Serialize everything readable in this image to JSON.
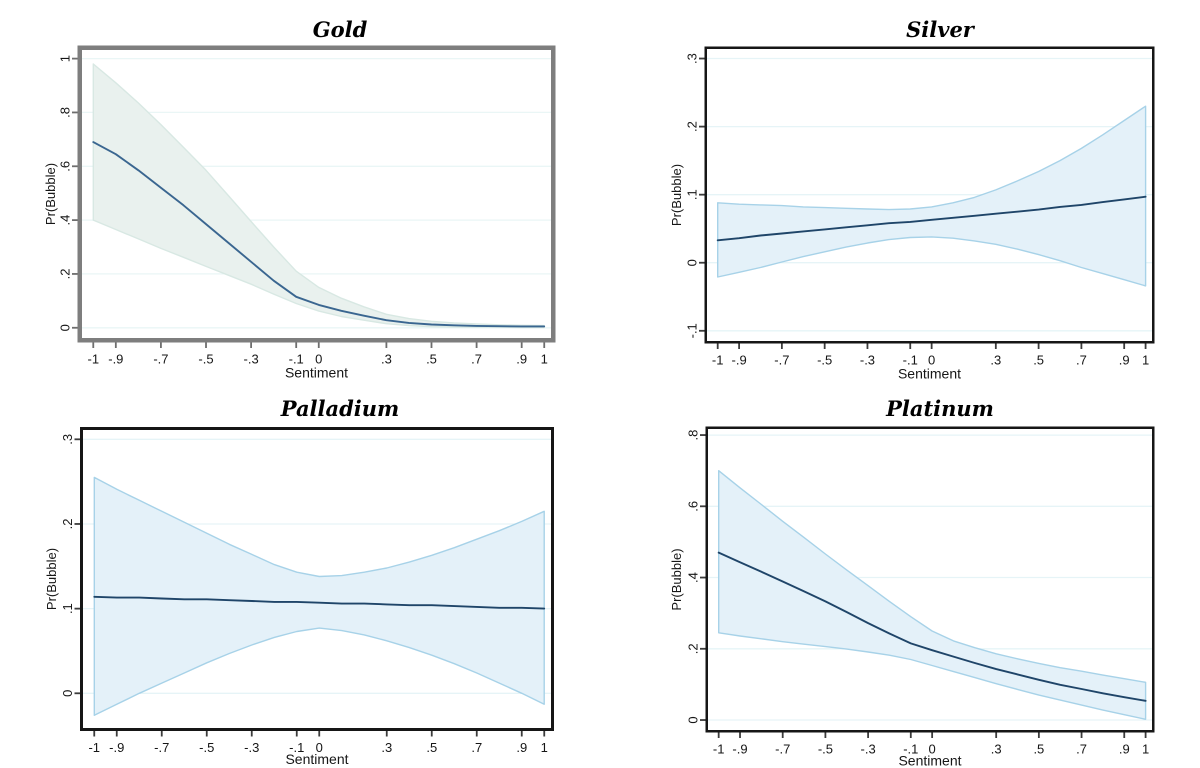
{
  "figure": {
    "background": "#ffffff",
    "layout_hint": "2x2 grid of Stata-style predictive margins plots with 95% confidence bands, horizontal gridlines on, no legend"
  },
  "chart_data": [
    {
      "type": "line",
      "title": "Gold",
      "xlabel": "Sentiment",
      "ylabel": "Pr(Bubble)",
      "x": [
        -1,
        -0.9,
        -0.8,
        -0.7,
        -0.6,
        -0.5,
        -0.4,
        -0.3,
        -0.2,
        -0.1,
        0,
        0.1,
        0.2,
        0.3,
        0.4,
        0.5,
        0.6,
        0.7,
        0.8,
        0.9,
        1
      ],
      "line": [
        0.69,
        0.645,
        0.585,
        0.52,
        0.455,
        0.385,
        0.315,
        0.245,
        0.175,
        0.115,
        0.085,
        0.063,
        0.045,
        0.028,
        0.018,
        0.012,
        0.009,
        0.007,
        0.006,
        0.005,
        0.005
      ],
      "ci_upper": [
        0.98,
        0.91,
        0.835,
        0.755,
        0.67,
        0.585,
        0.49,
        0.395,
        0.3,
        0.21,
        0.15,
        0.11,
        0.078,
        0.05,
        0.034,
        0.024,
        0.018,
        0.014,
        0.011,
        0.009,
        0.008
      ],
      "ci_lower": [
        0.4,
        0.365,
        0.33,
        0.295,
        0.262,
        0.228,
        0.195,
        0.162,
        0.125,
        0.09,
        0.062,
        0.042,
        0.028,
        0.015,
        0.008,
        0.004,
        0.003,
        0.002,
        0.002,
        0.001,
        0.001
      ],
      "xlim": [
        -1.05,
        1.03
      ],
      "ylim": [
        -0.038,
        1.032
      ],
      "xticks": {
        "values": [
          -1,
          -0.9,
          -0.7,
          -0.5,
          -0.3,
          -0.1,
          0,
          0.3,
          0.5,
          0.7,
          0.9,
          1
        ],
        "labels": [
          "-1",
          "-.9",
          "-.7",
          "-.5",
          "-.3",
          "-.1",
          "0",
          ".3",
          ".5",
          ".7",
          ".9",
          "1"
        ]
      },
      "yticks": {
        "values": [
          0,
          0.2,
          0.4,
          0.6,
          0.8,
          1
        ],
        "labels": [
          "0",
          ".2",
          ".4",
          ".6",
          ".8",
          "1"
        ]
      },
      "grid": "horizontal",
      "colors": {
        "band": "#e9f1ee",
        "band_edge": "#d8e8e3",
        "line": "#3a6690",
        "frame": "#7e7e7e",
        "grid": "#eaf6f6",
        "tick": "#6e6e6e"
      },
      "frame_width": 4.5
    },
    {
      "type": "line",
      "title": "Silver",
      "xlabel": "Sentiment",
      "ylabel": "Pr(Bubble)",
      "x": [
        -1,
        -0.9,
        -0.8,
        -0.7,
        -0.6,
        -0.5,
        -0.4,
        -0.3,
        -0.2,
        -0.1,
        0,
        0.1,
        0.2,
        0.3,
        0.4,
        0.5,
        0.6,
        0.7,
        0.8,
        0.9,
        1
      ],
      "line": [
        0.033,
        0.036,
        0.04,
        0.043,
        0.046,
        0.049,
        0.052,
        0.055,
        0.058,
        0.06,
        0.063,
        0.066,
        0.069,
        0.072,
        0.075,
        0.078,
        0.082,
        0.085,
        0.089,
        0.093,
        0.097
      ],
      "ci_upper": [
        0.088,
        0.086,
        0.085,
        0.084,
        0.082,
        0.081,
        0.08,
        0.079,
        0.078,
        0.079,
        0.082,
        0.088,
        0.096,
        0.107,
        0.12,
        0.134,
        0.15,
        0.168,
        0.188,
        0.209,
        0.23
      ],
      "ci_lower": [
        -0.021,
        -0.014,
        -0.007,
        0.001,
        0.009,
        0.016,
        0.023,
        0.029,
        0.034,
        0.037,
        0.038,
        0.036,
        0.032,
        0.027,
        0.02,
        0.012,
        0.003,
        -0.007,
        -0.016,
        -0.025,
        -0.034
      ],
      "xlim": [
        -1.05,
        1.03
      ],
      "ylim": [
        -0.115,
        0.314
      ],
      "xticks": {
        "values": [
          -1,
          -0.9,
          -0.7,
          -0.5,
          -0.3,
          -0.1,
          0,
          0.3,
          0.5,
          0.7,
          0.9,
          1
        ],
        "labels": [
          "-1",
          "-.9",
          "-.7",
          "-.5",
          "-.3",
          "-.1",
          "0",
          ".3",
          ".5",
          ".7",
          ".9",
          "1"
        ]
      },
      "yticks": {
        "values": [
          -0.1,
          0,
          0.1,
          0.2,
          0.3
        ],
        "labels": [
          "-.1",
          "0",
          ".1",
          ".2",
          ".3"
        ]
      },
      "grid": "horizontal",
      "colors": {
        "band": "#e4f1f9",
        "band_edge": "#a7d2e8",
        "line": "#1f4569",
        "frame": "#161616",
        "grid": "#e6f4f7",
        "tick": "#3c3c3c"
      },
      "frame_width": 2.5
    },
    {
      "type": "line",
      "title": "Palladium",
      "xlabel": "Sentiment",
      "ylabel": "Pr(Bubble)",
      "x": [
        -1,
        -0.9,
        -0.8,
        -0.7,
        -0.6,
        -0.5,
        -0.4,
        -0.3,
        -0.2,
        -0.1,
        0,
        0.1,
        0.2,
        0.3,
        0.4,
        0.5,
        0.6,
        0.7,
        0.8,
        0.9,
        1
      ],
      "line": [
        0.114,
        0.113,
        0.113,
        0.112,
        0.111,
        0.111,
        0.11,
        0.109,
        0.108,
        0.108,
        0.107,
        0.106,
        0.106,
        0.105,
        0.104,
        0.104,
        0.103,
        0.102,
        0.101,
        0.101,
        0.1
      ],
      "ci_upper": [
        0.255,
        0.241,
        0.228,
        0.215,
        0.202,
        0.189,
        0.176,
        0.164,
        0.152,
        0.143,
        0.138,
        0.139,
        0.143,
        0.148,
        0.155,
        0.163,
        0.172,
        0.182,
        0.192,
        0.203,
        0.215
      ],
      "ci_lower": [
        -0.026,
        -0.013,
        0.0,
        0.012,
        0.024,
        0.036,
        0.047,
        0.057,
        0.066,
        0.073,
        0.077,
        0.074,
        0.069,
        0.062,
        0.054,
        0.045,
        0.035,
        0.024,
        0.012,
        0.0,
        -0.013
      ],
      "xlim": [
        -1.05,
        1.03
      ],
      "ylim": [
        -0.041,
        0.311
      ],
      "xticks": {
        "values": [
          -1,
          -0.9,
          -0.7,
          -0.5,
          -0.3,
          -0.1,
          0,
          0.3,
          0.5,
          0.7,
          0.9,
          1
        ],
        "labels": [
          "-1",
          "-.9",
          "-.7",
          "-.5",
          "-.3",
          "-.1",
          "0",
          ".3",
          ".5",
          ".7",
          ".9",
          "1"
        ]
      },
      "yticks": {
        "values": [
          0,
          0.1,
          0.2,
          0.3
        ],
        "labels": [
          "0",
          ".1",
          ".2",
          ".3"
        ]
      },
      "grid": "horizontal",
      "colors": {
        "band": "#e4f1f9",
        "band_edge": "#a7d2e8",
        "line": "#1f4569",
        "frame": "#161616",
        "grid": "#e6f4f7",
        "tick": "#3c3c3c"
      },
      "frame_width": 3
    },
    {
      "type": "line",
      "title": "Platinum",
      "xlabel": "Sentiment",
      "ylabel": "Pr(Bubble)",
      "x": [
        -1,
        -0.9,
        -0.8,
        -0.7,
        -0.6,
        -0.5,
        -0.4,
        -0.3,
        -0.2,
        -0.1,
        0,
        0.1,
        0.2,
        0.3,
        0.4,
        0.5,
        0.6,
        0.7,
        0.8,
        0.9,
        1
      ],
      "line": [
        0.47,
        0.443,
        0.416,
        0.389,
        0.361,
        0.333,
        0.303,
        0.272,
        0.243,
        0.215,
        0.196,
        0.178,
        0.16,
        0.143,
        0.128,
        0.113,
        0.099,
        0.087,
        0.075,
        0.064,
        0.054
      ],
      "ci_upper": [
        0.7,
        0.652,
        0.605,
        0.558,
        0.512,
        0.466,
        0.421,
        0.377,
        0.333,
        0.29,
        0.25,
        0.222,
        0.203,
        0.186,
        0.172,
        0.159,
        0.147,
        0.137,
        0.126,
        0.116,
        0.106
      ],
      "ci_lower": [
        0.245,
        0.236,
        0.228,
        0.22,
        0.213,
        0.206,
        0.199,
        0.191,
        0.182,
        0.17,
        0.153,
        0.136,
        0.119,
        0.102,
        0.086,
        0.07,
        0.056,
        0.042,
        0.028,
        0.015,
        0.002
      ],
      "xlim": [
        -1.05,
        1.03
      ],
      "ylim": [
        -0.028,
        0.817
      ],
      "xticks": {
        "values": [
          -1,
          -0.9,
          -0.7,
          -0.5,
          -0.3,
          -0.1,
          0,
          0.3,
          0.5,
          0.7,
          0.9,
          1
        ],
        "labels": [
          "-1",
          "-.9",
          "-.7",
          "-.5",
          "-.3",
          "-.1",
          "0",
          ".3",
          ".5",
          ".7",
          ".9",
          "1"
        ]
      },
      "yticks": {
        "values": [
          0,
          0.2,
          0.4,
          0.6,
          0.8
        ],
        "labels": [
          "0",
          ".2",
          ".4",
          ".6",
          ".8"
        ]
      },
      "grid": "horizontal",
      "colors": {
        "band": "#e4f1f9",
        "band_edge": "#a7d2e8",
        "line": "#1f4569",
        "frame": "#161616",
        "grid": "#e6f4f7",
        "tick": "#3c3c3c"
      },
      "frame_width": 2.5
    }
  ]
}
